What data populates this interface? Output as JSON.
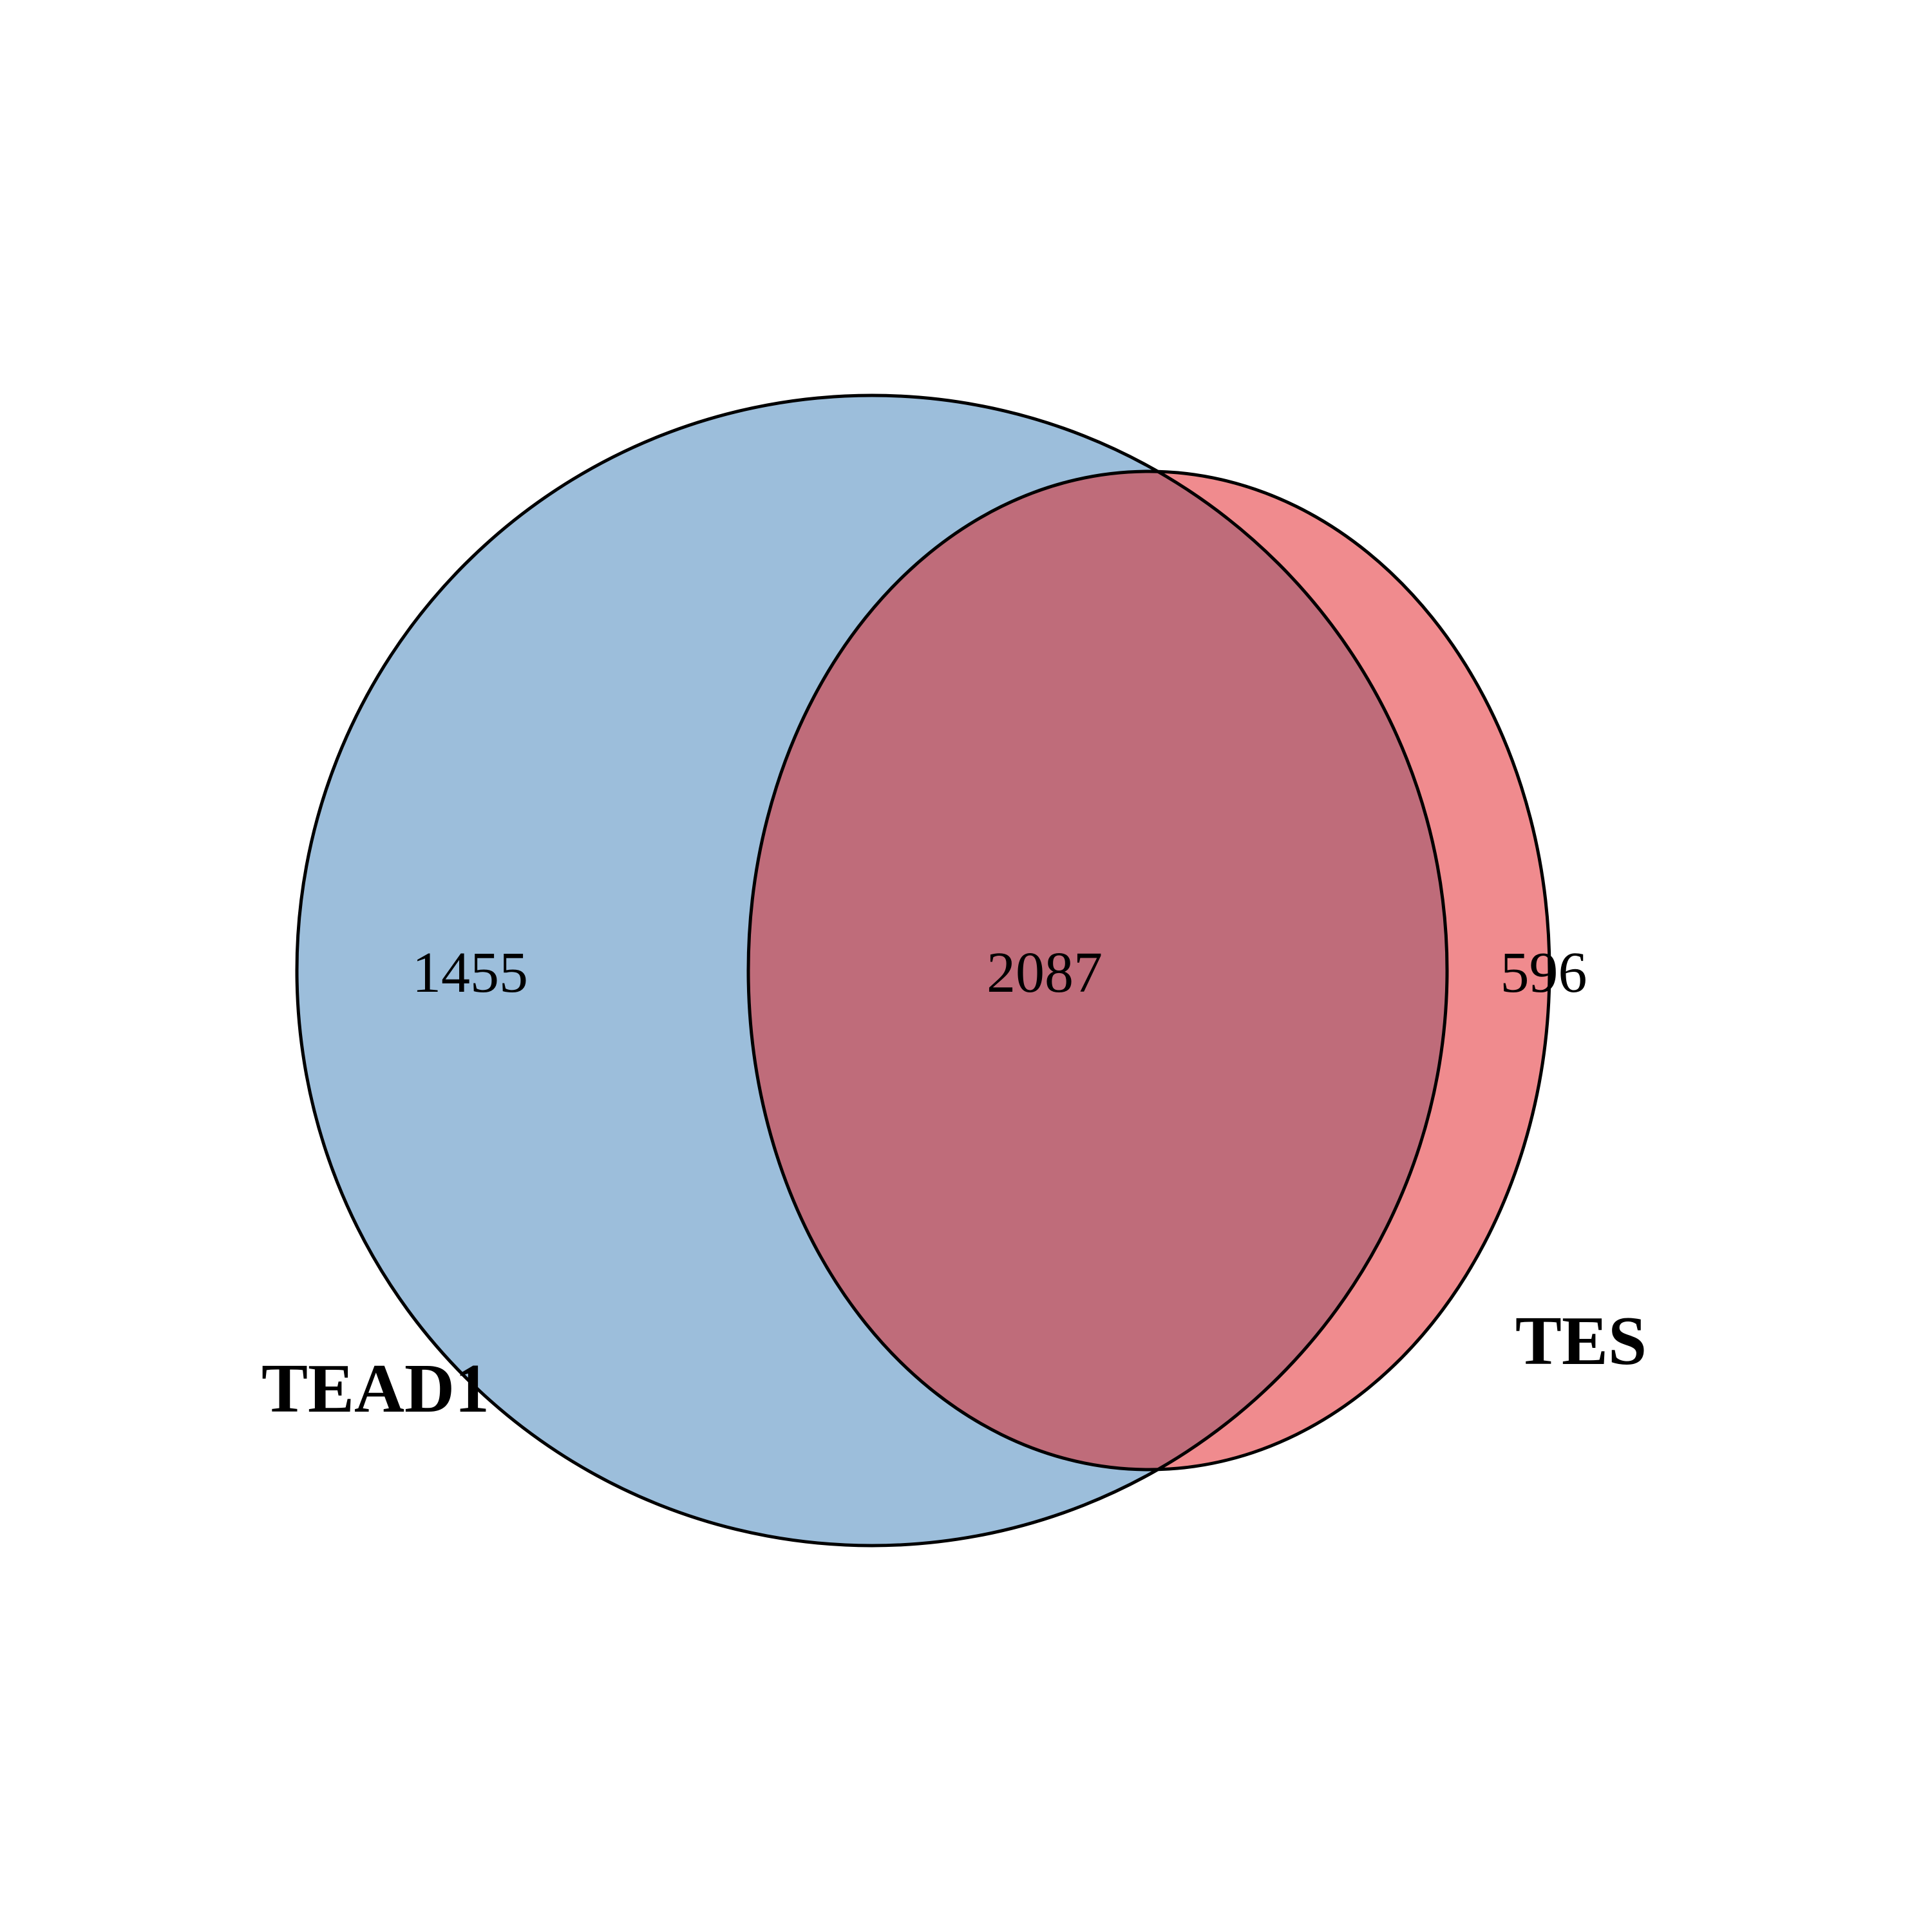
{
  "chart_data": {
    "type": "venn",
    "sets": [
      {
        "name": "TEAD1",
        "color": "#9cbedb"
      },
      {
        "name": "TES",
        "color": "#f08b8e"
      }
    ],
    "overlap_color": "#bf6c7a",
    "counts": {
      "TEAD1_only": "1455",
      "both": "2087",
      "TES_only": "596"
    }
  }
}
